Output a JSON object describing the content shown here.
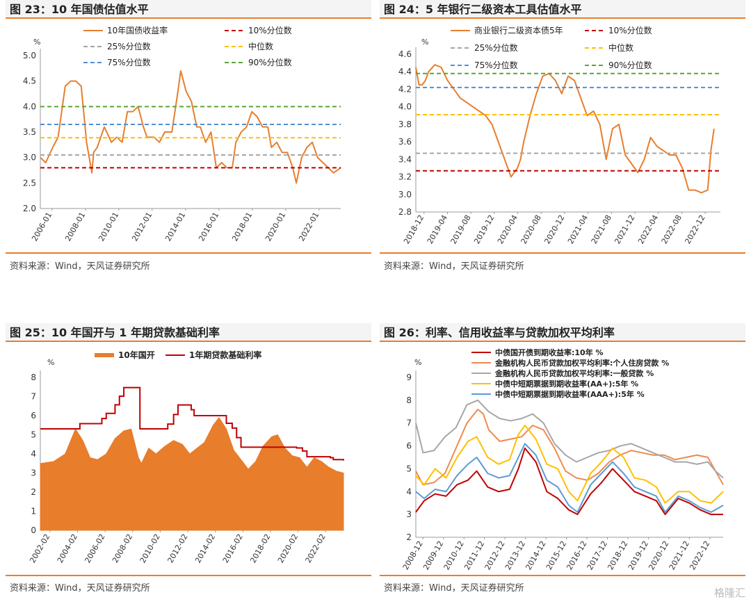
{
  "source_text": "资料来源：Wind，天风证券研究所",
  "watermark": "格隆汇",
  "chart_data": [
    {
      "title": "图 23：10 年国债估值水平",
      "type": "line",
      "unit": "%",
      "y_ticks": [
        "2.0",
        "2.5",
        "3.0",
        "3.5",
        "4.0",
        "4.5",
        "5.0"
      ],
      "ylim": [
        2.0,
        5.0
      ],
      "x_ticks": [
        "2006-01",
        "2008-01",
        "2010-01",
        "2012-01",
        "2014-01",
        "2016-01",
        "2018-01",
        "2020-01",
        "2022-01"
      ],
      "xlim": [
        2006.0,
        2022.9
      ],
      "series": [
        {
          "name": "10年国债收益率",
          "color": "#e87d2c",
          "kind": "line",
          "x": [
            2006.0,
            2006.3,
            2006.7,
            2007.0,
            2007.4,
            2007.7,
            2008.0,
            2008.3,
            2008.6,
            2008.9,
            2009.0,
            2009.2,
            2009.6,
            2010.0,
            2010.3,
            2010.6,
            2010.9,
            2011.2,
            2011.5,
            2011.8,
            2012.0,
            2012.4,
            2012.7,
            2013.0,
            2013.4,
            2013.7,
            2013.9,
            2014.2,
            2014.5,
            2014.8,
            2015.0,
            2015.3,
            2015.6,
            2015.9,
            2016.2,
            2016.5,
            2016.8,
            2017.0,
            2017.3,
            2017.6,
            2017.9,
            2018.2,
            2018.5,
            2018.8,
            2019.0,
            2019.3,
            2019.6,
            2019.9,
            2020.2,
            2020.4,
            2020.7,
            2021.0,
            2021.3,
            2021.6,
            2021.9,
            2022.2,
            2022.5,
            2022.9
          ],
          "y": [
            3.0,
            2.9,
            3.2,
            3.4,
            4.4,
            4.5,
            4.5,
            4.4,
            3.3,
            2.7,
            3.1,
            3.2,
            3.6,
            3.3,
            3.4,
            3.3,
            3.9,
            3.9,
            4.0,
            3.6,
            3.4,
            3.4,
            3.3,
            3.5,
            3.5,
            4.2,
            4.7,
            4.3,
            4.1,
            3.6,
            3.6,
            3.3,
            3.5,
            2.8,
            2.9,
            2.8,
            2.8,
            3.3,
            3.5,
            3.6,
            3.9,
            3.8,
            3.6,
            3.6,
            3.2,
            3.3,
            3.1,
            3.1,
            2.8,
            2.5,
            3.0,
            3.2,
            3.3,
            3.0,
            2.9,
            2.8,
            2.7,
            2.8
          ]
        },
        {
          "name": "10%分位数",
          "color": "#c00000",
          "kind": "hline",
          "value": 2.8
        },
        {
          "name": "25%分位数",
          "color": "#a6a6a6",
          "kind": "hline",
          "value": 3.05
        },
        {
          "name": "中位数",
          "color": "#ffc000",
          "kind": "hline",
          "value": 3.39
        },
        {
          "name": "75%分位数",
          "color": "#4f8fd6",
          "kind": "hline",
          "value": 3.65
        },
        {
          "name": "90%分位数",
          "color": "#5aa632",
          "kind": "hline",
          "value": 4.0
        }
      ]
    },
    {
      "title": "图 24：5 年银行二级资本工具估值水平",
      "type": "line",
      "unit": "%",
      "y_ticks": [
        "2.8",
        "3.0",
        "3.2",
        "3.4",
        "3.6",
        "3.8",
        "4.0",
        "4.2",
        "4.4",
        "4.6"
      ],
      "ylim": [
        2.8,
        4.6
      ],
      "x_ticks": [
        "2018-12",
        "2019-04",
        "2019-08",
        "2019-12",
        "2020-04",
        "2020-08",
        "2020-12",
        "2021-04",
        "2021-08",
        "2021-12",
        "2022-04",
        "2022-08",
        "2022-12"
      ],
      "xlim": [
        0,
        48
      ],
      "series": [
        {
          "name": "商业银行二级资本债5年",
          "color": "#e87d2c",
          "kind": "line",
          "x": [
            0,
            0.5,
            1,
            1.5,
            2,
            3,
            4,
            5,
            6,
            7,
            8,
            9,
            10,
            11,
            12,
            13,
            14,
            15,
            16,
            16.5,
            17,
            18,
            19,
            20,
            21,
            22,
            23,
            24,
            25,
            26,
            27,
            28,
            29,
            30,
            31,
            32,
            33,
            34,
            35,
            36,
            37,
            38,
            39,
            40,
            41,
            42,
            43,
            44,
            45,
            46,
            46.5,
            47
          ],
          "y": [
            4.45,
            4.25,
            4.25,
            4.3,
            4.4,
            4.48,
            4.45,
            4.3,
            4.2,
            4.1,
            4.05,
            4.0,
            3.95,
            3.9,
            3.8,
            3.6,
            3.4,
            3.2,
            3.3,
            3.4,
            3.6,
            3.9,
            4.15,
            4.35,
            4.38,
            4.3,
            4.15,
            4.35,
            4.3,
            4.1,
            3.9,
            3.95,
            3.8,
            3.4,
            3.75,
            3.8,
            3.45,
            3.35,
            3.25,
            3.4,
            3.65,
            3.55,
            3.5,
            3.45,
            3.45,
            3.3,
            3.05,
            3.05,
            3.02,
            3.05,
            3.5,
            3.75
          ]
        },
        {
          "name": "10%分位数",
          "color": "#c00000",
          "kind": "hline",
          "value": 3.27
        },
        {
          "name": "25%分位数",
          "color": "#a6a6a6",
          "kind": "hline",
          "value": 3.47
        },
        {
          "name": "中位数",
          "color": "#ffc000",
          "kind": "hline",
          "value": 3.91
        },
        {
          "name": "75%分位数",
          "color": "#4f8fd6",
          "kind": "hline",
          "value": 4.22
        },
        {
          "name": "90%分位数",
          "color": "#5aa632",
          "kind": "hline",
          "value": 4.38
        }
      ]
    },
    {
      "title": "图 25：10 年国开与 1 年期贷款基础利率",
      "type": "area",
      "unit": "%",
      "y_ticks": [
        "0",
        "1",
        "2",
        "3",
        "4",
        "5",
        "6",
        "7",
        "8"
      ],
      "ylim": [
        0,
        8
      ],
      "x_ticks": [
        "2002-02",
        "2004-02",
        "2006-02",
        "2008-02",
        "2010-02",
        "2012-02",
        "2014-02",
        "2016-02",
        "2018-02",
        "2020-02",
        "2022-02"
      ],
      "xlim": [
        2002.1,
        2022.8
      ],
      "series": [
        {
          "name": "10年国开",
          "color": "#e87d2c",
          "kind": "area",
          "x": [
            2002.1,
            2003.0,
            2003.8,
            2004.5,
            2005.0,
            2005.5,
            2006.0,
            2006.6,
            2007.2,
            2007.8,
            2008.3,
            2008.8,
            2009.0,
            2009.5,
            2010.0,
            2010.6,
            2011.2,
            2011.8,
            2012.3,
            2012.8,
            2013.3,
            2013.9,
            2014.3,
            2014.8,
            2015.3,
            2015.8,
            2016.3,
            2016.8,
            2017.3,
            2017.9,
            2018.3,
            2018.8,
            2019.3,
            2019.8,
            2020.3,
            2020.8,
            2021.3,
            2021.8,
            2022.3,
            2022.8
          ],
          "y": [
            3.5,
            3.6,
            4.0,
            5.3,
            4.7,
            3.8,
            3.7,
            4.0,
            4.8,
            5.2,
            5.3,
            3.8,
            3.5,
            4.3,
            4.0,
            4.4,
            4.7,
            4.5,
            4.0,
            4.3,
            4.6,
            5.5,
            5.9,
            5.3,
            4.2,
            3.7,
            3.2,
            3.6,
            4.4,
            4.9,
            5.0,
            4.3,
            3.9,
            3.8,
            3.3,
            3.8,
            3.6,
            3.3,
            3.1,
            3.0
          ]
        },
        {
          "name": "1年期贷款基础利率",
          "color": "#c00000",
          "kind": "step",
          "x": [
            2002.1,
            2004.8,
            2006.3,
            2006.6,
            2007.2,
            2007.5,
            2007.8,
            2008.9,
            2009.0,
            2010.8,
            2011.2,
            2011.5,
            2012.4,
            2012.6,
            2014.8,
            2015.2,
            2015.5,
            2015.8,
            2019.6,
            2020.0,
            2020.3,
            2021.9,
            2022.1,
            2022.8
          ],
          "y": [
            5.31,
            5.58,
            5.85,
            6.12,
            6.57,
            7.02,
            7.47,
            5.31,
            5.31,
            5.56,
            6.06,
            6.56,
            6.31,
            6.0,
            5.6,
            5.35,
            4.85,
            4.35,
            4.31,
            4.15,
            3.85,
            3.8,
            3.7,
            3.65
          ]
        }
      ]
    },
    {
      "title": "图 26：利率、信用收益率与贷款加权平均利率",
      "type": "line",
      "unit": "%",
      "y_ticks": [
        "2",
        "3",
        "4",
        "5",
        "6",
        "7",
        "8",
        "9"
      ],
      "ylim": [
        2,
        9
      ],
      "x_ticks": [
        "2008-12",
        "2009-12",
        "2010-12",
        "2011-12",
        "2012-12",
        "2013-12",
        "2014-12",
        "2015-12",
        "2016-12",
        "2017-12",
        "2018-12",
        "2019-12",
        "2020-12",
        "2021-12",
        "2022-12"
      ],
      "xlim": [
        2008.92,
        2022.95
      ],
      "series": [
        {
          "name": "中债国开债到期收益率:10年 %",
          "color": "#c00000",
          "kind": "line",
          "x": [
            2008.92,
            2009.3,
            2009.8,
            2010.3,
            2010.8,
            2011.3,
            2011.7,
            2012.2,
            2012.7,
            2013.2,
            2013.6,
            2013.9,
            2014.4,
            2014.9,
            2015.4,
            2015.9,
            2016.3,
            2016.9,
            2017.4,
            2017.9,
            2018.4,
            2018.9,
            2019.4,
            2019.9,
            2020.3,
            2020.9,
            2021.4,
            2021.9,
            2022.4,
            2022.95
          ],
          "y": [
            3.1,
            3.6,
            3.9,
            3.8,
            4.3,
            4.5,
            4.9,
            4.2,
            4.0,
            4.1,
            5.0,
            5.9,
            5.3,
            4.0,
            3.7,
            3.2,
            3.0,
            3.9,
            4.4,
            5.0,
            4.5,
            4.0,
            3.8,
            3.6,
            3.0,
            3.7,
            3.5,
            3.2,
            3.0,
            3.0
          ]
        },
        {
          "name": "金融机构人民币贷款加权平均利率:个人住房贷款 %",
          "color": "#ef8a4e",
          "kind": "line",
          "x": [
            2008.92,
            2009.25,
            2009.75,
            2010.25,
            2010.75,
            2011.25,
            2011.75,
            2012.0,
            2012.25,
            2012.75,
            2013.25,
            2013.75,
            2014.25,
            2014.75,
            2015.25,
            2015.75,
            2016.25,
            2016.75,
            2017.25,
            2017.75,
            2018.25,
            2018.75,
            2019.25,
            2019.75,
            2020.25,
            2020.75,
            2021.25,
            2021.75,
            2022.25,
            2022.6,
            2022.95
          ],
          "y": [
            4.9,
            4.3,
            4.4,
            4.8,
            5.9,
            7.0,
            7.6,
            7.4,
            6.7,
            6.2,
            6.3,
            6.4,
            6.9,
            6.7,
            5.9,
            4.9,
            4.6,
            4.5,
            4.8,
            5.3,
            5.6,
            5.8,
            5.7,
            5.6,
            5.6,
            5.4,
            5.5,
            5.6,
            5.5,
            4.9,
            4.3
          ]
        },
        {
          "name": "金融机构人民币贷款加权平均利率:一般贷款 %",
          "color": "#a6a6a6",
          "kind": "line",
          "x": [
            2008.92,
            2009.25,
            2009.75,
            2010.25,
            2010.75,
            2011.25,
            2011.75,
            2012.25,
            2012.75,
            2013.25,
            2013.75,
            2014.25,
            2014.75,
            2015.25,
            2015.75,
            2016.25,
            2016.75,
            2017.25,
            2017.75,
            2018.25,
            2018.75,
            2019.25,
            2019.75,
            2020.25,
            2020.75,
            2021.25,
            2021.75,
            2022.25,
            2022.6,
            2022.95
          ],
          "y": [
            7.0,
            5.7,
            5.8,
            6.4,
            6.8,
            7.8,
            8.0,
            7.5,
            7.2,
            7.1,
            7.2,
            7.4,
            7.0,
            6.1,
            5.6,
            5.3,
            5.5,
            5.7,
            5.8,
            6.0,
            6.1,
            5.9,
            5.7,
            5.5,
            5.3,
            5.3,
            5.2,
            5.3,
            4.9,
            4.6
          ]
        },
        {
          "name": "中债中短期票据到期收益率(AA+):5年 %",
          "color": "#ffc000",
          "kind": "line",
          "x": [
            2008.92,
            2009.3,
            2009.8,
            2010.3,
            2010.8,
            2011.3,
            2011.7,
            2012.2,
            2012.7,
            2013.2,
            2013.6,
            2013.9,
            2014.4,
            2014.9,
            2015.4,
            2015.9,
            2016.3,
            2016.9,
            2017.4,
            2017.9,
            2018.4,
            2018.9,
            2019.4,
            2019.9,
            2020.3,
            2020.9,
            2021.4,
            2021.9,
            2022.4,
            2022.95
          ],
          "y": [
            4.7,
            4.3,
            5.0,
            4.6,
            5.5,
            6.2,
            6.4,
            5.5,
            5.2,
            5.4,
            6.5,
            6.9,
            6.3,
            5.2,
            5.0,
            4.0,
            3.6,
            4.8,
            5.3,
            5.9,
            5.5,
            4.6,
            4.5,
            4.2,
            3.5,
            4.0,
            4.0,
            3.6,
            3.5,
            4.0
          ]
        },
        {
          "name": "中债中短期票据到期收益率(AAA+):5年 %",
          "color": "#5b9bd5",
          "kind": "line",
          "x": [
            2008.92,
            2009.3,
            2009.8,
            2010.3,
            2010.8,
            2011.3,
            2011.7,
            2012.2,
            2012.7,
            2013.2,
            2013.6,
            2013.9,
            2014.4,
            2014.9,
            2015.4,
            2015.9,
            2016.3,
            2016.9,
            2017.4,
            2017.9,
            2018.4,
            2018.9,
            2019.4,
            2019.9,
            2020.3,
            2020.9,
            2021.4,
            2021.9,
            2022.4,
            2022.95
          ],
          "y": [
            4.0,
            3.7,
            4.1,
            4.0,
            4.7,
            5.2,
            5.5,
            4.8,
            4.6,
            4.7,
            5.5,
            6.1,
            5.6,
            4.5,
            4.2,
            3.4,
            3.1,
            4.3,
            4.8,
            5.3,
            4.8,
            4.2,
            4.0,
            3.8,
            3.1,
            3.8,
            3.6,
            3.3,
            3.1,
            3.4
          ]
        }
      ]
    }
  ]
}
